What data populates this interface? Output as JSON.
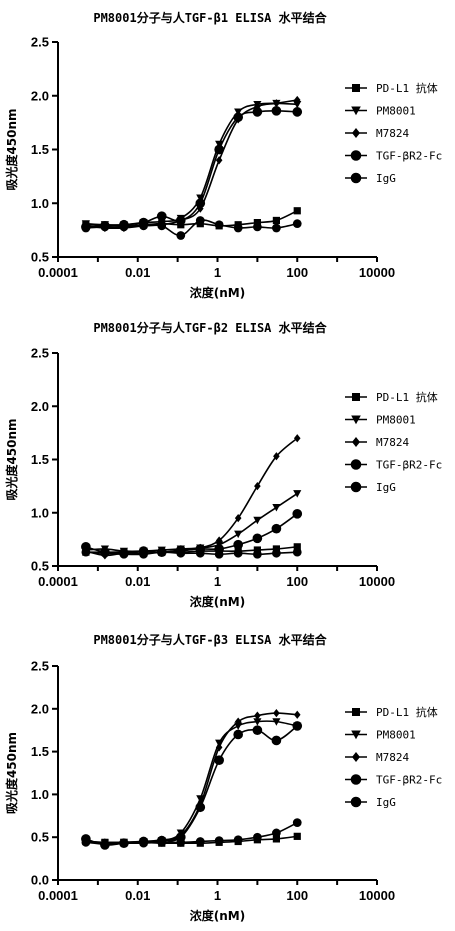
{
  "chart_data": [
    {
      "type": "scatter",
      "title": "PM8001分子与人TGF-β1 ELISA 水平结合",
      "xlabel": "浓度(nM)",
      "ylabel": "吸光度450nm",
      "xscale": "log",
      "xlim": [
        0.0001,
        10000
      ],
      "ylim": [
        0.5,
        2.5
      ],
      "xticks": [
        "0.0001",
        "0.01",
        "1",
        "100",
        "10000"
      ],
      "yticks": [
        "0.5",
        "1.0",
        "1.5",
        "2.0",
        "2.5"
      ],
      "legend_position": "right",
      "x": [
        0.0005,
        0.0015,
        0.0045,
        0.014,
        0.04,
        0.12,
        0.37,
        1.1,
        3.3,
        10,
        30,
        100
      ],
      "series": [
        {
          "name": "PD-L1 抗体",
          "marker": "square",
          "values": [
            0.8,
            0.8,
            0.79,
            0.8,
            0.81,
            0.8,
            0.81,
            0.79,
            0.8,
            0.82,
            0.84,
            0.93
          ]
        },
        {
          "name": "PM8001",
          "marker": "triangle-down",
          "values": [
            0.81,
            0.8,
            0.8,
            0.82,
            0.83,
            0.86,
            1.05,
            1.55,
            1.85,
            1.92,
            1.93,
            1.92
          ]
        },
        {
          "name": "M7824",
          "marker": "diamond",
          "values": [
            0.79,
            0.77,
            0.77,
            0.79,
            0.8,
            0.84,
            0.95,
            1.4,
            1.78,
            1.9,
            1.93,
            1.96
          ]
        },
        {
          "name": "TGF-βR2-Fc",
          "marker": "circle",
          "values": [
            0.78,
            0.79,
            0.8,
            0.82,
            0.88,
            0.84,
            1.0,
            1.5,
            1.8,
            1.85,
            1.86,
            1.85
          ]
        },
        {
          "name": "IgG",
          "marker": "circle",
          "values": [
            0.77,
            0.78,
            0.78,
            0.79,
            0.79,
            0.7,
            0.84,
            0.8,
            0.77,
            0.78,
            0.77,
            0.81
          ]
        }
      ]
    },
    {
      "type": "scatter",
      "title": "PM8001分子与人TGF-β2 ELISA 水平结合",
      "xlabel": "浓度(nM)",
      "ylabel": "吸光度450nm",
      "xscale": "log",
      "xlim": [
        0.0001,
        10000
      ],
      "ylim": [
        0.5,
        2.5
      ],
      "xticks": [
        "0.0001",
        "0.01",
        "1",
        "100",
        "10000"
      ],
      "yticks": [
        "0.5",
        "1.0",
        "1.5",
        "2.0",
        "2.5"
      ],
      "legend_position": "right",
      "x": [
        0.0005,
        0.0015,
        0.0045,
        0.014,
        0.04,
        0.12,
        0.37,
        1.1,
        3.3,
        10,
        30,
        100
      ],
      "series": [
        {
          "name": "PD-L1 抗体",
          "marker": "square",
          "values": [
            0.63,
            0.63,
            0.63,
            0.62,
            0.63,
            0.63,
            0.64,
            0.64,
            0.64,
            0.65,
            0.66,
            0.68
          ]
        },
        {
          "name": "PM8001",
          "marker": "triangle-down",
          "values": [
            0.65,
            0.66,
            0.64,
            0.64,
            0.65,
            0.66,
            0.67,
            0.7,
            0.8,
            0.93,
            1.05,
            1.18
          ]
        },
        {
          "name": "M7824",
          "marker": "diamond",
          "values": [
            0.64,
            0.6,
            0.62,
            0.62,
            0.63,
            0.64,
            0.67,
            0.74,
            0.95,
            1.25,
            1.53,
            1.7
          ]
        },
        {
          "name": "TGF-βR2-Fc",
          "marker": "circle",
          "values": [
            0.68,
            0.63,
            0.62,
            0.64,
            0.63,
            0.65,
            0.66,
            0.66,
            0.7,
            0.76,
            0.85,
            0.99
          ]
        },
        {
          "name": "IgG",
          "marker": "circle",
          "values": [
            0.63,
            0.62,
            0.61,
            0.61,
            0.63,
            0.62,
            0.62,
            0.61,
            0.62,
            0.61,
            0.62,
            0.63
          ]
        }
      ]
    },
    {
      "type": "scatter",
      "title": "PM8001分子与人TGF-β3 ELISA 水平结合",
      "xlabel": "浓度(nM)",
      "ylabel": "吸光度450nm",
      "xscale": "log",
      "xlim": [
        0.0001,
        10000
      ],
      "ylim": [
        0.0,
        2.5
      ],
      "xticks": [
        "0.0001",
        "0.01",
        "1",
        "100",
        "10000"
      ],
      "yticks": [
        "0.0",
        "0.5",
        "1.0",
        "1.5",
        "2.0",
        "2.5"
      ],
      "legend_position": "right",
      "x": [
        0.0005,
        0.0015,
        0.0045,
        0.014,
        0.04,
        0.12,
        0.37,
        1.1,
        3.3,
        10,
        30,
        100
      ],
      "series": [
        {
          "name": "PD-L1 抗体",
          "marker": "square",
          "values": [
            0.45,
            0.44,
            0.44,
            0.44,
            0.43,
            0.43,
            0.43,
            0.44,
            0.45,
            0.47,
            0.48,
            0.51
          ]
        },
        {
          "name": "PM8001",
          "marker": "triangle-down",
          "values": [
            0.46,
            0.43,
            0.44,
            0.45,
            0.46,
            0.55,
            0.95,
            1.6,
            1.8,
            1.85,
            1.85,
            1.8
          ]
        },
        {
          "name": "M7824",
          "marker": "diamond",
          "values": [
            0.45,
            0.44,
            0.44,
            0.45,
            0.47,
            0.52,
            0.88,
            1.55,
            1.85,
            1.92,
            1.95,
            1.93
          ]
        },
        {
          "name": "TGF-βR2-Fc",
          "marker": "circle",
          "values": [
            0.48,
            0.41,
            0.43,
            0.45,
            0.46,
            0.5,
            0.85,
            1.4,
            1.7,
            1.75,
            1.63,
            1.8
          ]
        },
        {
          "name": "IgG",
          "marker": "circle",
          "values": [
            0.44,
            0.42,
            0.43,
            0.43,
            0.44,
            0.44,
            0.45,
            0.46,
            0.47,
            0.5,
            0.55,
            0.67
          ]
        }
      ]
    }
  ]
}
